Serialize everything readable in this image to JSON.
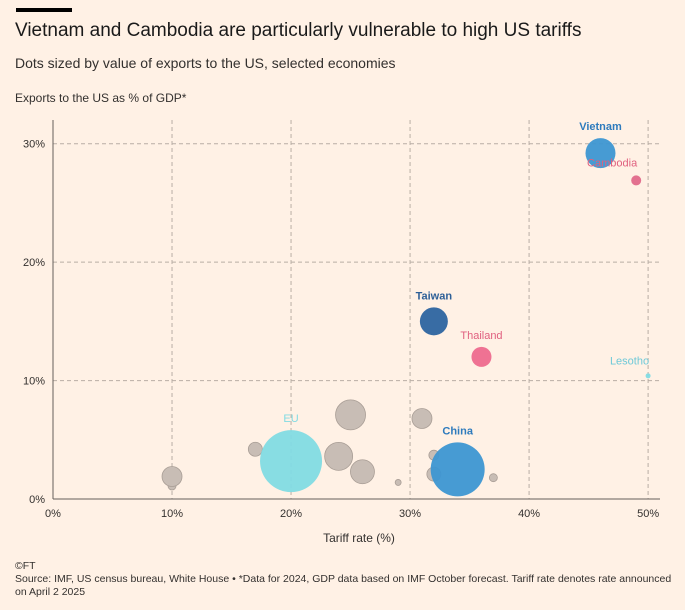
{
  "header": {
    "title": "Vietnam and Cambodia are particularly vulnerable to high US tariffs",
    "subtitle": "Dots sized by value of exports to the US, selected economies",
    "y_axis_label": "Exports to the US as % of GDP*"
  },
  "footer": {
    "copyright": "©FT",
    "source": "Source: IMF, US census bureau, White House • *Data for 2024, GDP data based on IMF October forecast. Tariff rate denotes rate announced on April 2 2025"
  },
  "colors": {
    "background": "#fff1e5",
    "grey_dot": "#c8bdb5",
    "vietnam": "#3d96d2",
    "cambodia": "#e2698a",
    "taiwan": "#2d64a0",
    "thailand": "#ee6a8e",
    "lesotho": "#82dbe3",
    "eu": "#82dbe3",
    "china": "#3d96d2"
  },
  "chart_data": {
    "type": "scatter",
    "title": "Vietnam and Cambodia are particularly vulnerable to high US tariffs",
    "subtitle": "Dots sized by value of exports to the US, selected economies",
    "xlabel": "Tariff rate (%)",
    "ylabel": "Exports to the US as % of GDP*",
    "xlim": [
      0,
      51
    ],
    "ylim": [
      0,
      32
    ],
    "x_ticks": [
      0,
      10,
      20,
      30,
      40,
      50
    ],
    "x_tick_labels": [
      "0%",
      "10%",
      "20%",
      "30%",
      "40%",
      "50%"
    ],
    "y_ticks": [
      0,
      10,
      20,
      30
    ],
    "y_tick_labels": [
      "0%",
      "10%",
      "20%",
      "30%"
    ],
    "grid": true,
    "points": [
      {
        "label": "",
        "x": 10,
        "y": 1.1,
        "size": 4,
        "color": "#c8bdb5"
      },
      {
        "label": "",
        "x": 10,
        "y": 1.9,
        "size": 10,
        "color": "#c8bdb5"
      },
      {
        "label": "",
        "x": 17,
        "y": 4.2,
        "size": 7,
        "color": "#c8bdb5"
      },
      {
        "label": "",
        "x": 24,
        "y": 3.6,
        "size": 14,
        "color": "#c8bdb5"
      },
      {
        "label": "",
        "x": 25,
        "y": 7.1,
        "size": 15,
        "color": "#c8bdb5"
      },
      {
        "label": "",
        "x": 26,
        "y": 2.3,
        "size": 12,
        "color": "#c8bdb5"
      },
      {
        "label": "",
        "x": 29,
        "y": 1.4,
        "size": 3,
        "color": "#c8bdb5"
      },
      {
        "label": "",
        "x": 31,
        "y": 6.8,
        "size": 10,
        "color": "#c8bdb5"
      },
      {
        "label": "",
        "x": 32,
        "y": 3.7,
        "size": 5,
        "color": "#c8bdb5"
      },
      {
        "label": "",
        "x": 32,
        "y": 2.1,
        "size": 7,
        "color": "#c8bdb5"
      },
      {
        "label": "",
        "x": 37,
        "y": 1.8,
        "size": 4,
        "color": "#c8bdb5"
      },
      {
        "label": "EU",
        "x": 20,
        "y": 3.2,
        "size": 31,
        "color": "#82dbe3",
        "label_color": "#82dbe3",
        "label_pos": "above"
      },
      {
        "label": "China",
        "x": 34,
        "y": 2.5,
        "size": 27,
        "color": "#3d96d2",
        "label_color": "#2e7bbd",
        "label_pos": "above"
      },
      {
        "label": "Taiwan",
        "x": 32,
        "y": 15,
        "size": 14,
        "color": "#2d64a0",
        "label_color": "#2d5f97",
        "label_pos": "above"
      },
      {
        "label": "Thailand",
        "x": 36,
        "y": 12,
        "size": 10,
        "color": "#ee6a8e",
        "label_color": "#e0607f",
        "label_pos": "above"
      },
      {
        "label": "Vietnam",
        "x": 46,
        "y": 29.2,
        "size": 15,
        "color": "#3d96d2",
        "label_color": "#2e7bbd",
        "label_pos": "above"
      },
      {
        "label": "Cambodia",
        "x": 49,
        "y": 26.9,
        "size": 5,
        "color": "#e2698a",
        "label_color": "#e0607f",
        "label_pos": "above-left"
      },
      {
        "label": "Lesotho",
        "x": 50,
        "y": 10.4,
        "size": 2.5,
        "color": "#82dbe3",
        "label_color": "#6fc9d8",
        "label_pos": "above-left"
      }
    ]
  }
}
